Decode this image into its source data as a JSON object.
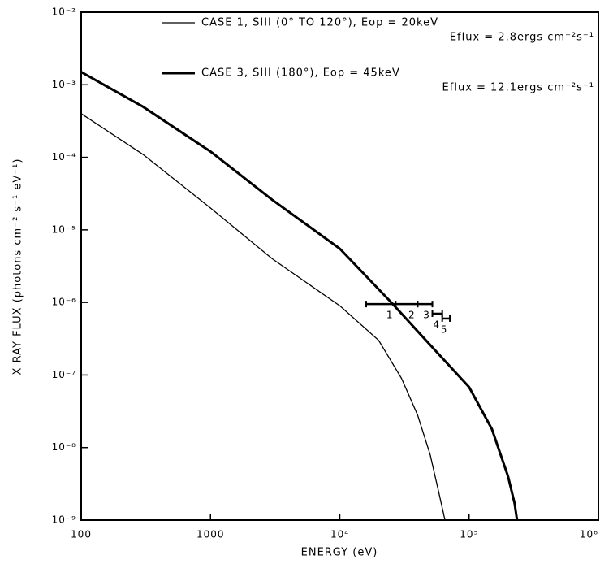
{
  "chart_data": {
    "type": "line",
    "xlabel": "ENERGY (eV)",
    "ylabel": "X RAY FLUX (photons cm⁻² s⁻¹ eV⁻¹)",
    "xscale": "log",
    "yscale": "log",
    "xlim": [
      100,
      1000000
    ],
    "ylim": [
      1e-09,
      0.01
    ],
    "xticks": [
      100,
      1000,
      {
        "value": 10000,
        "label": "10⁴"
      },
      {
        "value": 100000,
        "label": "10⁵"
      },
      {
        "value": 1000000,
        "label": "10⁶"
      }
    ],
    "yticks": [
      {
        "value": 1e-09,
        "label": "10⁻⁹"
      },
      {
        "value": 1e-08,
        "label": "10⁻⁸"
      },
      {
        "value": 1e-07,
        "label": "10⁻⁷"
      },
      {
        "value": 1e-06,
        "label": "10⁻⁶"
      },
      {
        "value": 1e-05,
        "label": "10⁻⁵"
      },
      {
        "value": 0.0001,
        "label": "10⁻⁴"
      },
      {
        "value": 0.001,
        "label": "10⁻³"
      },
      {
        "value": 0.01,
        "label": "10⁻²"
      }
    ],
    "series": [
      {
        "name": "CASE 1, SIII (0° TO 120°), Eop = 20keV",
        "annotation": "Eflux = 2.8ergs cm⁻²s⁻¹",
        "color": "#000",
        "width": 1.3,
        "x": [
          100,
          300,
          1000,
          3000,
          10000,
          20000,
          30000,
          40000,
          50000,
          58000,
          63000,
          65000
        ],
        "values": [
          0.0004,
          0.00011,
          2e-05,
          4e-06,
          9e-07,
          3e-07,
          9e-08,
          2.8e-08,
          8e-09,
          2.5e-09,
          1.3e-09,
          1e-09
        ]
      },
      {
        "name": "CASE 3, SIII (180°), Eop = 45keV",
        "annotation": "Eflux = 12.1ergs cm⁻²s⁻¹",
        "color": "#000",
        "width": 3,
        "x": [
          100,
          300,
          1000,
          3000,
          10000,
          25000,
          50000,
          100000,
          150000,
          200000,
          225000,
          235000
        ],
        "values": [
          0.0015,
          0.0005,
          0.00012,
          2.6e-05,
          5.5e-06,
          1e-06,
          2.6e-07,
          6.8e-08,
          1.8e-08,
          4e-09,
          1.7e-09,
          1e-09
        ]
      }
    ],
    "points": [
      {
        "label": "1",
        "x": [
          16000,
          27000
        ],
        "y": 9.5e-07
      },
      {
        "label": "2",
        "x": [
          27000,
          40000
        ],
        "y": 9.5e-07
      },
      {
        "label": "3",
        "x": [
          40000,
          52000
        ],
        "y": 9.5e-07
      },
      {
        "label": "4",
        "x": [
          52000,
          62000
        ],
        "y": 7e-07
      },
      {
        "label": "5",
        "x": [
          62000,
          71000
        ],
        "y": 6e-07
      }
    ]
  }
}
